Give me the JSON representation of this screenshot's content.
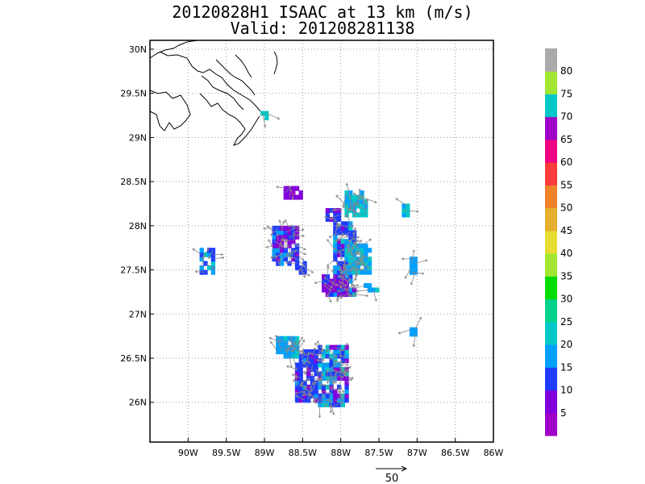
{
  "title": {
    "line1": "20120828H1 ISAAC at 13 km (m/s)",
    "line2": "Valid: 201208281138"
  },
  "colors": {
    "frame": "#000000",
    "grid": "#999999",
    "coast": "#000000",
    "arrow": "#888888"
  },
  "map": {
    "lon_range": [
      -90.5,
      -86.0
    ],
    "lat_range": [
      25.55,
      30.1
    ],
    "x_ticks": [
      {
        "v": -90.0,
        "label": "90W"
      },
      {
        "v": -89.5,
        "label": "89.5W"
      },
      {
        "v": -89.0,
        "label": "89W"
      },
      {
        "v": -88.5,
        "label": "88.5W"
      },
      {
        "v": -88.0,
        "label": "88W"
      },
      {
        "v": -87.5,
        "label": "87.5W"
      },
      {
        "v": -87.0,
        "label": "87W"
      },
      {
        "v": -86.5,
        "label": "86.5W"
      },
      {
        "v": -86.0,
        "label": "86W"
      }
    ],
    "y_ticks": [
      {
        "v": 26.0,
        "label": "26N"
      },
      {
        "v": 26.5,
        "label": "26.5N"
      },
      {
        "v": 27.0,
        "label": "27N"
      },
      {
        "v": 27.5,
        "label": "27.5N"
      },
      {
        "v": 28.0,
        "label": "28N"
      },
      {
        "v": 28.5,
        "label": "28.5N"
      },
      {
        "v": 29.0,
        "label": "29N"
      },
      {
        "v": 29.5,
        "label": "29.5N"
      },
      {
        "v": 30.0,
        "label": "30N"
      }
    ]
  },
  "chart_data": {
    "type": "heatmap",
    "title": "20120828H1 ISAAC at 13 km (m/s)",
    "subtitle": "Valid: 201208281138",
    "xlim": [
      -90.5,
      -86.0
    ],
    "ylim": [
      25.55,
      30.1
    ],
    "grid": true,
    "cell_deg": 0.05,
    "colorbar": {
      "bands": [
        {
          "color": "#a000c8",
          "from": 0,
          "to": 5
        },
        {
          "color": "#8200dc",
          "from": 5,
          "to": 10
        },
        {
          "color": "#1e3cff",
          "from": 10,
          "to": 15
        },
        {
          "color": "#00a0ff",
          "from": 15,
          "to": 20
        },
        {
          "color": "#00c8c8",
          "from": 20,
          "to": 25
        },
        {
          "color": "#00d28c",
          "from": 25,
          "to": 30
        },
        {
          "color": "#00dc00",
          "from": 30,
          "to": 35
        },
        {
          "color": "#a0e632",
          "from": 35,
          "to": 40
        },
        {
          "color": "#e6dc32",
          "from": 40,
          "to": 45
        },
        {
          "color": "#e6af2d",
          "from": 45,
          "to": 50
        },
        {
          "color": "#f08228",
          "from": 50,
          "to": 55
        },
        {
          "color": "#fa3c3c",
          "from": 55,
          "to": 60
        },
        {
          "color": "#f00082",
          "from": 60,
          "to": 65
        },
        {
          "color": "#a000c8",
          "from": 65,
          "to": 70
        },
        {
          "color": "#00c8c8",
          "from": 70,
          "to": 75
        },
        {
          "color": "#a0e632",
          "from": 75,
          "to": 80
        },
        {
          "color": "#aaaaaa",
          "from": 80,
          "to": 85
        }
      ],
      "labels": [
        "5",
        "10",
        "15",
        "20",
        "25",
        "30",
        "35",
        "40",
        "45",
        "50",
        "55",
        "60",
        "65",
        "70",
        "75",
        "80"
      ]
    },
    "clusters": [
      {
        "lon": [
          -88.6,
          -88.3
        ],
        "lat": [
          26.0,
          26.6
        ],
        "base": 12,
        "var": 4
      },
      {
        "lon": [
          -88.3,
          -87.9
        ],
        "lat": [
          25.95,
          26.65
        ],
        "base": 14,
        "var": 8
      },
      {
        "lon": [
          -88.85,
          -88.55
        ],
        "lat": [
          26.5,
          26.75
        ],
        "base": 19,
        "var": 4
      },
      {
        "lon": [
          -89.85,
          -89.65
        ],
        "lat": [
          27.45,
          27.75
        ],
        "base": 17,
        "var": 6
      },
      {
        "lon": [
          -88.9,
          -88.55
        ],
        "lat": [
          27.55,
          28.0
        ],
        "base": 11,
        "var": 6
      },
      {
        "lon": [
          -88.6,
          -88.45
        ],
        "lat": [
          27.45,
          27.65
        ],
        "base": 13,
        "var": 2
      },
      {
        "lon": [
          -88.75,
          -88.5
        ],
        "lat": [
          28.3,
          28.45
        ],
        "base": 7,
        "var": 3
      },
      {
        "lon": [
          -88.2,
          -88.0
        ],
        "lat": [
          28.05,
          28.2
        ],
        "base": 10,
        "var": 5
      },
      {
        "lon": [
          -88.1,
          -87.8
        ],
        "lat": [
          27.2,
          28.05
        ],
        "base": 15,
        "var": 6
      },
      {
        "lon": [
          -88.25,
          -87.9
        ],
        "lat": [
          27.2,
          27.45
        ],
        "base": 9,
        "var": 4
      },
      {
        "lon": [
          -87.95,
          -87.6
        ],
        "lat": [
          27.45,
          27.8
        ],
        "base": 19,
        "var": 4
      },
      {
        "lon": [
          -87.95,
          -87.65
        ],
        "lat": [
          28.1,
          28.4
        ],
        "base": 20,
        "var": 5
      },
      {
        "lon": [
          -87.7,
          -87.5
        ],
        "lat": [
          27.25,
          27.35
        ],
        "base": 18,
        "var": 3
      },
      {
        "lon": [
          -87.2,
          -87.1
        ],
        "lat": [
          28.1,
          28.25
        ],
        "base": 21,
        "var": 2
      },
      {
        "lon": [
          -87.1,
          -87.0
        ],
        "lat": [
          27.45,
          27.65
        ],
        "base": 19,
        "var": 2
      },
      {
        "lon": [
          -87.15,
          -87.0
        ],
        "lat": [
          26.75,
          26.85
        ],
        "base": 19,
        "var": 1
      },
      {
        "lon": [
          -89.05,
          -88.95
        ],
        "lat": [
          29.2,
          29.35
        ],
        "base": 21,
        "var": 2
      }
    ],
    "reference_vector": {
      "label": "50",
      "value": 50
    }
  }
}
